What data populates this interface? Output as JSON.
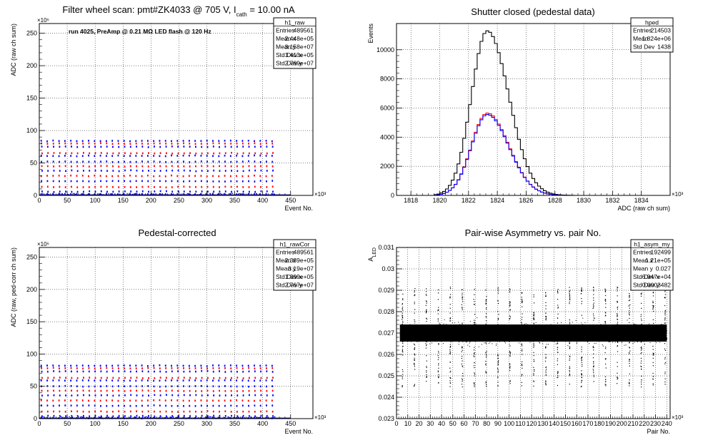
{
  "chart_data": [
    {
      "id": "raw",
      "type": "scatter",
      "title": "",
      "title_parts": [
        "Filter wheel scan: pmt#ZK4033 @   705 V, I",
        "cath",
        " = 10.00 nA"
      ],
      "annotation": "run 4025, PreAmp @ 0.21 MΩ LED flash @  120 Hz",
      "xlabel": "Event No.",
      "ylabel": "ADC (raw ch sum)",
      "x_exponent": "×10³",
      "y_exponent": "×10⁶",
      "xlim": [
        0,
        490
      ],
      "ylim": [
        0,
        265
      ],
      "xticks": [
        0,
        50,
        100,
        150,
        200,
        250,
        300,
        350,
        400,
        450
      ],
      "yticks": [
        0,
        50,
        100,
        150,
        200,
        250
      ],
      "grid": true,
      "cycle_period": 10.6,
      "cycle_count": 40,
      "levels": [
        {
          "y": 84,
          "color": "#0000ff"
        },
        {
          "y": 80,
          "color": "#ff0000"
        },
        {
          "y": 75,
          "color": "#0000ff"
        },
        {
          "y": 65,
          "color": "#ff0000"
        },
        {
          "y": 61,
          "color": "#0000ff"
        },
        {
          "y": 52,
          "color": "#0000ff"
        },
        {
          "y": 45,
          "color": "#ff0000"
        },
        {
          "y": 38,
          "color": "#0000ff"
        },
        {
          "y": 30,
          "color": "#ff0000"
        },
        {
          "y": 22,
          "color": "#0000ff"
        },
        {
          "y": 13,
          "color": "#ff0000"
        },
        {
          "y": 6,
          "color": "#0000ff"
        },
        {
          "y": 2,
          "color": "#0000ff"
        }
      ],
      "stats": {
        "name": "h1_raw",
        "rows": [
          [
            "Entries",
            "489561"
          ],
          [
            "Mean x",
            "2.448e+05"
          ],
          [
            "Mean y",
            "3.158e+07"
          ],
          [
            "Std Dev x",
            "1.413e+05"
          ],
          [
            "Std Dev y",
            "2.789e+07"
          ]
        ]
      }
    },
    {
      "id": "ped",
      "type": "histogram",
      "title": "Shutter closed (pedestal data)",
      "xlabel": "ADC (raw ch sum)",
      "ylabel": "Events",
      "x_exponent": "×10³",
      "xlim": [
        1817,
        1836
      ],
      "ylim": [
        0,
        11800
      ],
      "xticks": [
        1818,
        1820,
        1822,
        1824,
        1826,
        1828,
        1830,
        1832,
        1834
      ],
      "yticks": [
        0,
        2000,
        4000,
        6000,
        8000,
        10000
      ],
      "grid": true,
      "series": [
        {
          "color": "#000000",
          "peak": 11300,
          "mean": 1823.2,
          "sigma_left": 1.1,
          "sigma_right": 1.5
        },
        {
          "color": "#ff0000",
          "peak": 5650,
          "mean": 1823.2,
          "sigma_left": 1.1,
          "sigma_right": 1.5
        },
        {
          "color": "#0000ff",
          "peak": 5550,
          "mean": 1823.2,
          "sigma_left": 1.1,
          "sigma_right": 1.5
        }
      ],
      "stats": {
        "name": "hped",
        "rows": [
          [
            "Entries",
            "214503"
          ],
          [
            "Mean",
            "1.824e+06"
          ],
          [
            "Std Dev",
            "1438"
          ]
        ]
      }
    },
    {
      "id": "rawcor",
      "type": "scatter",
      "title": "Pedestal-corrected",
      "xlabel": "Event No.",
      "ylabel": "ADC (raw, ped-corr ch sum)",
      "x_exponent": "×10³",
      "y_exponent": "×10⁶",
      "xlim": [
        0,
        490
      ],
      "ylim": [
        0,
        265
      ],
      "xticks": [
        0,
        50,
        100,
        150,
        200,
        250,
        300,
        350,
        400,
        450
      ],
      "yticks": [
        0,
        50,
        100,
        150,
        200,
        250
      ],
      "grid": true,
      "cycle_period": 10.6,
      "cycle_count": 40,
      "levels": [
        {
          "y": 82,
          "color": "#0000ff"
        },
        {
          "y": 78,
          "color": "#ff0000"
        },
        {
          "y": 73,
          "color": "#0000ff"
        },
        {
          "y": 63,
          "color": "#ff0000"
        },
        {
          "y": 59,
          "color": "#0000ff"
        },
        {
          "y": 50,
          "color": "#0000ff"
        },
        {
          "y": 43,
          "color": "#ff0000"
        },
        {
          "y": 36,
          "color": "#0000ff"
        },
        {
          "y": 28,
          "color": "#ff0000"
        },
        {
          "y": 20,
          "color": "#0000ff"
        },
        {
          "y": 11,
          "color": "#ff0000"
        },
        {
          "y": 4,
          "color": "#0000ff"
        },
        {
          "y": 1,
          "color": "#0000ff"
        }
      ],
      "stats": {
        "name": "h1_rawCor",
        "rows": [
          [
            "Entries",
            "489561"
          ],
          [
            "Mean x",
            "2.389e+05"
          ],
          [
            "Mean y",
            "3.19e+07"
          ],
          [
            "Std Dev x",
            "1.399e+05"
          ],
          [
            "Std Dev y",
            "2.767e+07"
          ]
        ]
      }
    },
    {
      "id": "asym",
      "type": "scatter",
      "title": "Pair-wise Asymmetry vs. pair No.",
      "xlabel": "Pair No.",
      "ylabel": "A",
      "ylabel_sub": "LED",
      "x_exponent": "×10³",
      "xlim": [
        0,
        243
      ],
      "ylim": [
        0.023,
        0.031
      ],
      "xticks": [
        0,
        10,
        20,
        30,
        40,
        50,
        60,
        70,
        80,
        90,
        100,
        110,
        120,
        130,
        140,
        150,
        160,
        170,
        180,
        190,
        200,
        210,
        220,
        230,
        240
      ],
      "xtick_labels": [
        "0",
        "10",
        "20",
        "30",
        "40",
        "50",
        "60",
        "70",
        "80",
        "90",
        "100",
        "110",
        "120",
        "130",
        "140",
        "150",
        "160",
        "170",
        "180",
        "190",
        "200",
        "210",
        "220",
        "230",
        "240"
      ],
      "yticks": [
        0.023,
        0.024,
        0.025,
        0.026,
        0.027,
        0.028,
        0.029,
        0.03,
        0.031
      ],
      "ytick_labels": [
        "0.023",
        "0.024",
        "0.025",
        "0.026",
        "0.027",
        "0.028",
        "0.029",
        "0.03",
        "0.031"
      ],
      "grid": true,
      "band_center": 0.027,
      "band_halfwidth": 0.0004,
      "band_xrange": [
        3,
        240
      ],
      "spike_period": 10.6,
      "spike_low": 0.0245,
      "spike_high": 0.0292,
      "stats": {
        "name": "h1_asym_my",
        "rows": [
          [
            "Entries",
            "192499"
          ],
          [
            "Mean x",
            "1.21e+05"
          ],
          [
            "Mean y",
            "0.027"
          ],
          [
            "Std Dev x",
            "6.947e+04"
          ],
          [
            "Std Dev y",
            "0.0003482"
          ]
        ]
      }
    }
  ]
}
